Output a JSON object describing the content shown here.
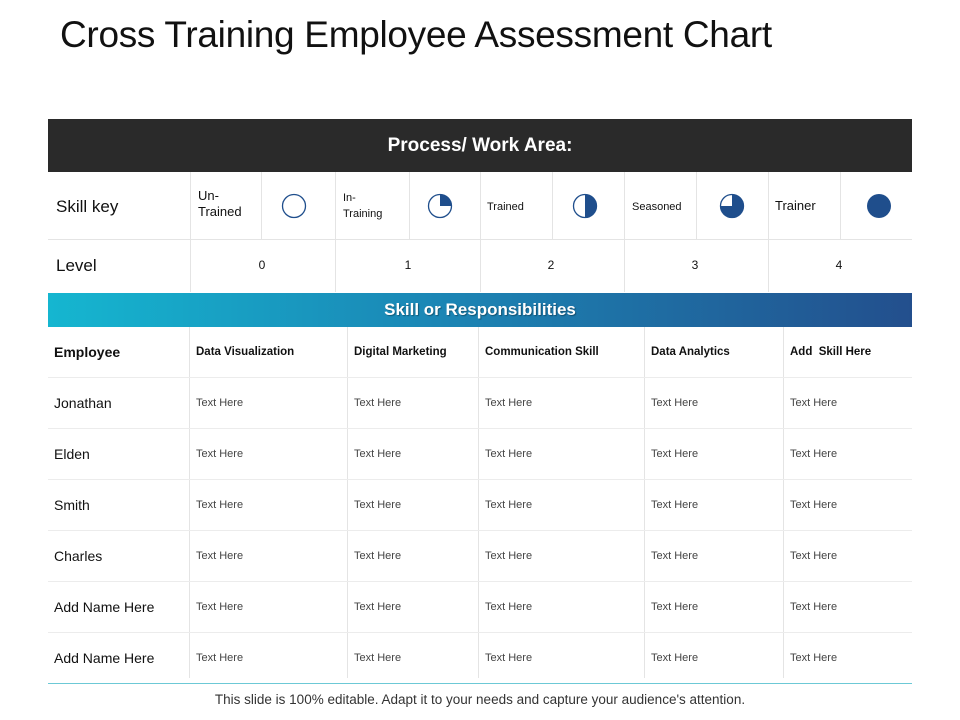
{
  "title": "Cross Training Employee Assessment Chart",
  "process_header": "Process/ Work Area:",
  "skill_key": {
    "label": "Skill key",
    "items": [
      {
        "label": "Un- Trained",
        "icon": "empty-circle-icon",
        "fill_fraction": 0
      },
      {
        "label": "In- Training",
        "icon": "quarter-circle-icon",
        "fill_fraction": 0.25
      },
      {
        "label": "Trained",
        "icon": "half-circle-icon",
        "fill_fraction": 0.5
      },
      {
        "label": "Seasoned",
        "icon": "three-quarter-circle-icon",
        "fill_fraction": 0.75
      },
      {
        "label": "Trainer",
        "icon": "full-circle-icon",
        "fill_fraction": 1
      }
    ]
  },
  "level": {
    "label": "Level",
    "values": [
      "0",
      "1",
      "2",
      "3",
      "4"
    ]
  },
  "skills_header": "Skill or Responsibilities",
  "table": {
    "columns": [
      "Employee",
      "Data Visualization",
      "Digital Marketing",
      "Communication Skill",
      "Data Analytics",
      "Add  Skill Here"
    ],
    "rows": [
      {
        "name": "Jonathan",
        "cells": [
          "Text Here",
          "Text Here",
          "Text Here",
          "Text Here",
          "Text Here"
        ]
      },
      {
        "name": "Elden",
        "cells": [
          "Text Here",
          "Text Here",
          "Text Here",
          "Text Here",
          "Text Here"
        ]
      },
      {
        "name": "Smith",
        "cells": [
          "Text Here",
          "Text Here",
          "Text Here",
          "Text Here",
          "Text Here"
        ]
      },
      {
        "name": "Charles",
        "cells": [
          "Text Here",
          "Text Here",
          "Text Here",
          "Text Here",
          "Text Here"
        ]
      },
      {
        "name": "Add Name Here",
        "cells": [
          "Text Here",
          "Text Here",
          "Text Here",
          "Text Here",
          "Text Here"
        ]
      },
      {
        "name": "Add Name Here",
        "cells": [
          "Text Here",
          "Text Here",
          "Text Here",
          "Text Here",
          "Text Here"
        ]
      }
    ]
  },
  "footer": "This slide is 100% editable. Adapt it to your needs and capture your audience's attention.",
  "colors": {
    "dark_header": "#2a2a2a",
    "icon_fill": "#1f4e8c",
    "gradient_start": "#15b6d0",
    "gradient_end": "#234f8d"
  }
}
